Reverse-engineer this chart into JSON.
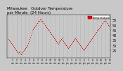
{
  "title": "Milwaukee   Outdoor Temperature",
  "subtitle": "per Minute  (24 Hours)",
  "legend_label": "Temperature",
  "bg_color": "#c8c8c8",
  "plot_bg_color": "#c8c8c8",
  "line_color": "#dd0000",
  "ylim": [
    18,
    60
  ],
  "yticks": [
    25,
    30,
    35,
    40,
    45,
    50,
    55
  ],
  "ylabel_fontsize": 3.5,
  "xlabel_fontsize": 2.2,
  "title_fontsize": 4.0,
  "temperatures": [
    36,
    35,
    34,
    33,
    32,
    31,
    30,
    29,
    28,
    27,
    26,
    25,
    24,
    23,
    22,
    23,
    24,
    22,
    21,
    22,
    23,
    24,
    25,
    26,
    27,
    28,
    29,
    30,
    32,
    34,
    36,
    38,
    40,
    42,
    44,
    46,
    47,
    48,
    49,
    50,
    51,
    52,
    53,
    54,
    54,
    55,
    55,
    54,
    54,
    53,
    52,
    51,
    50,
    49,
    48,
    47,
    46,
    45,
    44,
    43,
    42,
    41,
    40,
    39,
    38,
    37,
    36,
    35,
    34,
    33,
    32,
    31,
    33,
    34,
    35,
    36,
    37,
    35,
    34,
    33,
    32,
    31,
    30,
    29,
    28,
    27,
    28,
    29,
    30,
    31,
    32,
    33,
    34,
    35,
    36,
    37,
    36,
    35,
    34,
    33,
    32,
    31,
    30,
    29,
    28,
    27,
    26,
    25,
    26,
    27,
    28,
    29,
    30,
    31,
    32,
    33,
    34,
    35,
    36,
    37,
    38,
    39,
    40,
    41,
    42,
    43,
    44,
    45,
    46,
    47,
    48,
    49,
    50,
    51,
    52,
    53,
    54,
    55,
    54,
    53,
    52,
    51,
    50,
    49
  ],
  "time_labels": [
    "01\n1a",
    "02\n2a",
    "03\n3a",
    "04\n4a",
    "05\n5a",
    "06\n6a",
    "07\n7a",
    "08\n8a",
    "09\n9a",
    "10\n10a",
    "11\n11a",
    "12\n12p",
    "13\n1p",
    "14\n2p",
    "15\n3p",
    "16\n4p",
    "17\n5p",
    "18\n6p",
    "19\n7p",
    "20\n8p",
    "21\n9p",
    "22\n10p",
    "23\n11p",
    "24\n12a"
  ]
}
